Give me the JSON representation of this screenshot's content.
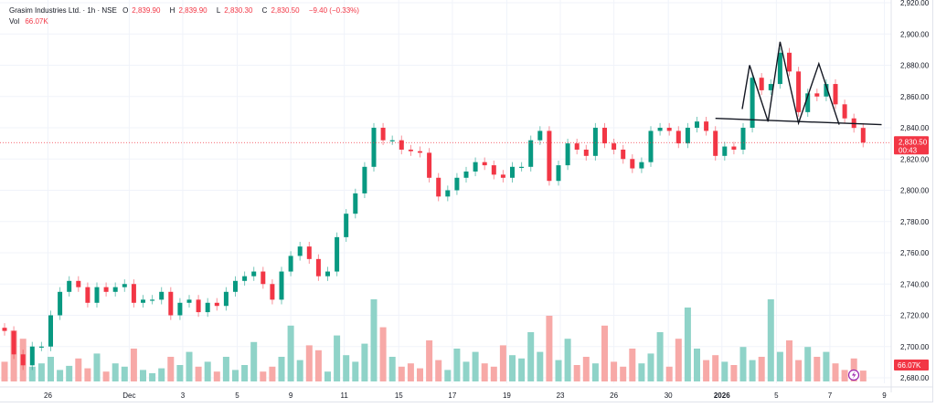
{
  "legend": {
    "symbol": "Grasim Industries Ltd. · 1h · NSE",
    "o_label": "O",
    "o": "2,839.90",
    "h_label": "H",
    "h": "2,839.90",
    "l_label": "L",
    "l": "2,830.30",
    "c_label": "C",
    "c": "2,830.50",
    "change": "−9.40 (−0.33%)",
    "vol_label": "Vol",
    "vol": "66.07K"
  },
  "price_tag": {
    "price": "2,830.50",
    "countdown": "00:43"
  },
  "volume_tag": "66.07K",
  "colors": {
    "up": "#089981",
    "down": "#f23645",
    "up_vol": "#8fd3c8",
    "down_vol": "#f7a9a7",
    "grid": "#f0f3fa",
    "tag": "#f23645",
    "lightning": "#9c27b0"
  },
  "chart_data": {
    "type": "candlestick",
    "title": "Grasim Industries Ltd. · 1h · NSE",
    "ylim": [
      2680,
      2920
    ],
    "yticks": [
      "2,680.00",
      "2,700.00",
      "2,720.00",
      "2,740.00",
      "2,760.00",
      "2,780.00",
      "2,800.00",
      "2,820.00",
      "2,840.00",
      "2,860.00",
      "2,880.00",
      "2,900.00",
      "2,920.00"
    ],
    "ytick_values": [
      2680,
      2700,
      2720,
      2740,
      2760,
      2780,
      2800,
      2820,
      2840,
      2860,
      2880,
      2900,
      2920
    ],
    "xticks": [
      {
        "label": "26",
        "index": 4.7
      },
      {
        "label": "Dec",
        "index": 13.5
      },
      {
        "label": "3",
        "index": 19.3
      },
      {
        "label": "5",
        "index": 25.2
      },
      {
        "label": "9",
        "index": 31
      },
      {
        "label": "11",
        "index": 36.8
      },
      {
        "label": "15",
        "index": 42.7
      },
      {
        "label": "17",
        "index": 48.5
      },
      {
        "label": "19",
        "index": 54.4
      },
      {
        "label": "23",
        "index": 60.2
      },
      {
        "label": "26",
        "index": 66
      },
      {
        "label": "30",
        "index": 71.9
      },
      {
        "label": "2026",
        "index": 77.7
      },
      {
        "label": "5",
        "index": 83.6
      },
      {
        "label": "7",
        "index": 89.4
      },
      {
        "label": "9",
        "index": 95.3
      }
    ],
    "first_open": 2712,
    "wick_points": 3,
    "closes": [
      2710,
      2695,
      2688,
      2700,
      2700,
      2720,
      2735,
      2742,
      2738,
      2728,
      2738,
      2735,
      2738,
      2740,
      2728,
      2730,
      2730,
      2735,
      2720,
      2728,
      2730,
      2722,
      2728,
      2726,
      2735,
      2742,
      2745,
      2748,
      2740,
      2730,
      2748,
      2758,
      2764,
      2756,
      2745,
      2748,
      2770,
      2785,
      2798,
      2815,
      2840,
      2832,
      2832,
      2826,
      2825,
      2824,
      2808,
      2796,
      2800,
      2808,
      2812,
      2818,
      2816,
      2810,
      2808,
      2815,
      2815,
      2832,
      2838,
      2806,
      2816,
      2830,
      2826,
      2822,
      2840,
      2830,
      2826,
      2820,
      2814,
      2818,
      2838,
      2840,
      2838,
      2830,
      2840,
      2844,
      2838,
      2822,
      2828,
      2826,
      2840,
      2872,
      2864,
      2868,
      2888,
      2876,
      2850,
      2862,
      2860,
      2868,
      2855,
      2846,
      2839.9,
      2830.5
    ],
    "volumes_k": [
      120,
      310,
      260,
      90,
      110,
      150,
      70,
      95,
      140,
      80,
      170,
      60,
      110,
      90,
      200,
      70,
      50,
      80,
      150,
      100,
      180,
      90,
      120,
      60,
      150,
      70,
      100,
      240,
      60,
      90,
      150,
      340,
      130,
      220,
      190,
      60,
      280,
      160,
      120,
      230,
      500,
      330,
      150,
      90,
      110,
      80,
      250,
      130,
      70,
      200,
      120,
      180,
      110,
      90,
      220,
      160,
      140,
      300,
      180,
      400,
      130,
      260,
      100,
      150,
      110,
      340,
      120,
      90,
      200,
      110,
      170,
      300,
      90,
      260,
      450,
      200,
      130,
      160,
      120,
      100,
      210,
      130,
      150,
      500,
      180,
      250,
      130,
      210,
      150,
      180,
      110,
      70,
      140,
      66.07
    ],
    "patterns": [
      {
        "name": "neckline",
        "points": [
          [
            77.0,
            2846
          ],
          [
            95.0,
            2842
          ]
        ]
      },
      {
        "name": "head-and-shoulders",
        "points": [
          [
            79.9,
            2852
          ],
          [
            80.7,
            2880
          ],
          [
            82.7,
            2844
          ],
          [
            84.0,
            2895
          ],
          [
            86.0,
            2843
          ],
          [
            88.2,
            2881
          ],
          [
            90.4,
            2842
          ]
        ]
      }
    ]
  }
}
